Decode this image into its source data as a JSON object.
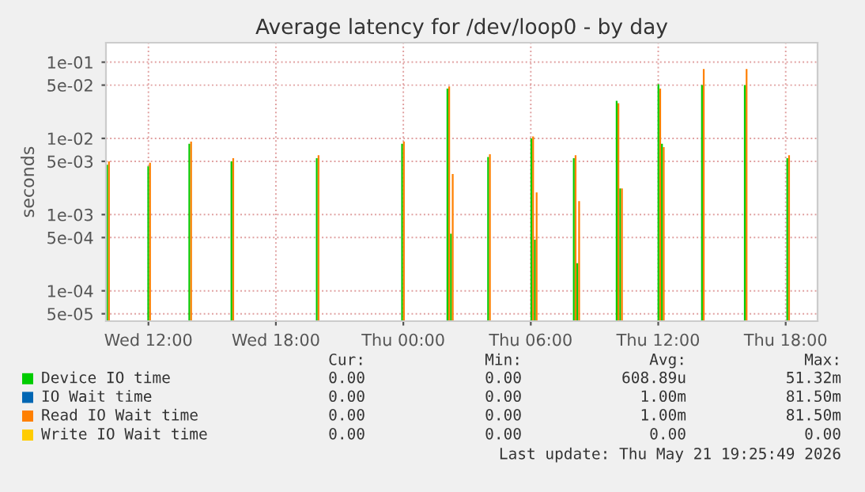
{
  "chart_data": {
    "type": "bar",
    "title": "Average latency for /dev/loop0 - by day",
    "ylabel": "seconds",
    "log": "y",
    "grid": true,
    "legend": "bottom",
    "xlim": [
      "2026-05-20T10:00",
      "2026-05-21T19:30"
    ],
    "xticks": [
      {
        "value": "2026-05-20T12:00",
        "label": "Wed 12:00"
      },
      {
        "value": "2026-05-20T18:00",
        "label": "Wed 18:00"
      },
      {
        "value": "2026-05-21T00:00",
        "label": "Thu 00:00"
      },
      {
        "value": "2026-05-21T06:00",
        "label": "Thu 06:00"
      },
      {
        "value": "2026-05-21T12:00",
        "label": "Thu 12:00"
      },
      {
        "value": "2026-05-21T18:00",
        "label": "Thu 18:00"
      }
    ],
    "ylim": [
      4e-05,
      0.18
    ],
    "yticks": [
      {
        "value": 5e-05,
        "label": "5e-05"
      },
      {
        "value": 0.0001,
        "label": "1e-04"
      },
      {
        "value": 0.0005,
        "label": "5e-04"
      },
      {
        "value": 0.001,
        "label": "1e-03"
      },
      {
        "value": 0.005,
        "label": "5e-03"
      },
      {
        "value": 0.01,
        "label": "1e-02"
      },
      {
        "value": 0.05,
        "label": "5e-02"
      },
      {
        "value": 0.1,
        "label": "1e-01"
      }
    ],
    "series": [
      {
        "name": "Device IO time",
        "color": "#00cc00",
        "x": [
          "2026-05-20T10:06",
          "2026-05-20T12:02",
          "2026-05-20T13:58",
          "2026-05-20T15:57",
          "2026-05-20T19:58",
          "2026-05-20T23:59",
          "2026-05-21T02:07",
          "2026-05-21T02:17",
          "2026-05-21T04:02",
          "2026-05-21T06:04",
          "2026-05-21T06:14",
          "2026-05-21T08:04",
          "2026-05-21T08:14",
          "2026-05-21T10:05",
          "2026-05-21T10:15",
          "2026-05-21T12:03",
          "2026-05-21T12:13",
          "2026-05-21T14:06",
          "2026-05-21T16:07",
          "2026-05-21T18:07"
        ],
        "values": [
          0.0045,
          0.0043,
          0.0085,
          0.005,
          0.0055,
          0.0085,
          0.045,
          0.00056,
          0.0057,
          0.01,
          0.00047,
          0.0055,
          0.00023,
          0.031,
          0.0022,
          0.0513,
          0.0085,
          0.05,
          0.05,
          0.0055
        ]
      },
      {
        "name": "IO Wait time",
        "color": "#0066b3"
      },
      {
        "name": "Read IO Wait time",
        "color": "#ff8000",
        "x": [
          "2026-05-20T10:06",
          "2026-05-20T12:02",
          "2026-05-20T13:58",
          "2026-05-20T15:57",
          "2026-05-20T19:58",
          "2026-05-20T23:59",
          "2026-05-21T02:07",
          "2026-05-21T02:17",
          "2026-05-21T04:02",
          "2026-05-21T06:04",
          "2026-05-21T06:14",
          "2026-05-21T08:04",
          "2026-05-21T08:14",
          "2026-05-21T10:05",
          "2026-05-21T10:15",
          "2026-05-21T12:03",
          "2026-05-21T12:13",
          "2026-05-21T14:06",
          "2026-05-21T16:07",
          "2026-05-21T18:07"
        ],
        "values": [
          0.005,
          0.0048,
          0.0091,
          0.0055,
          0.006,
          0.0091,
          0.048,
          0.0034,
          0.0062,
          0.0106,
          0.00195,
          0.006,
          0.0015,
          0.029,
          0.0022,
          0.045,
          0.0077,
          0.0815,
          0.0815,
          0.006
        ]
      },
      {
        "name": "Write IO Wait time",
        "color": "#ffcc00"
      }
    ],
    "annotations": [
      "Cur:",
      "Min:",
      "Avg:",
      "Max:",
      "0.00",
      "0.00",
      "608.89u",
      "51.32m",
      "0.00",
      "0.00",
      "1.00m",
      "81.50m",
      "0.00",
      "0.00",
      "1.00m",
      "81.50m",
      "0.00",
      "0.00",
      "0.00",
      "0.00",
      "Last update: Thu May 21 19:25:49 2026"
    ]
  }
}
